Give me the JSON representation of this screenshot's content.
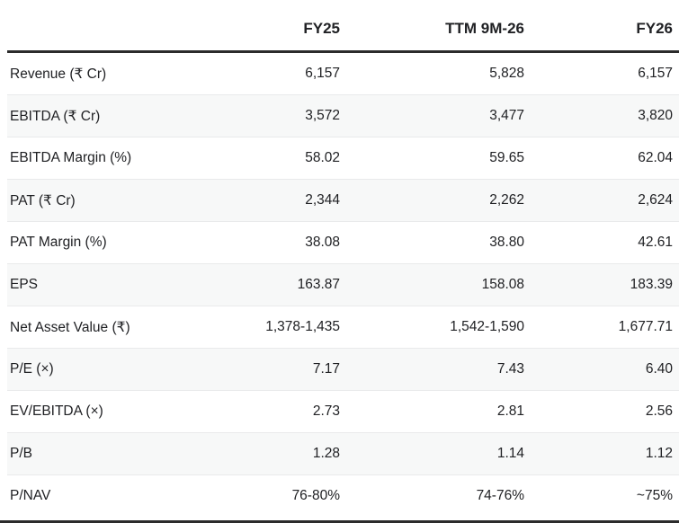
{
  "chart_data": {
    "type": "table",
    "columns": [
      "",
      "FY25",
      "TTM 9M-26",
      "FY26"
    ],
    "rows": [
      [
        "Revenue (₹ Cr)",
        "6,157",
        "5,828",
        "6,157"
      ],
      [
        "EBITDA (₹ Cr)",
        "3,572",
        "3,477",
        "3,820"
      ],
      [
        "EBITDA Margin (%)",
        "58.02",
        "59.65",
        "62.04"
      ],
      [
        "PAT (₹ Cr)",
        "2,344",
        "2,262",
        "2,624"
      ],
      [
        "PAT Margin (%)",
        "38.08",
        "38.80",
        "42.61"
      ],
      [
        "EPS",
        "163.87",
        "158.08",
        "183.39"
      ],
      [
        "Net Asset Value (₹)",
        "1,378-1,435",
        "1,542-1,590",
        "1,677.71"
      ],
      [
        "P/E (×)",
        "7.17",
        "7.43",
        "6.40"
      ],
      [
        "EV/EBITDA (×)",
        "2.73",
        "2.81",
        "2.56"
      ],
      [
        "P/B",
        "1.28",
        "1.14",
        "1.12"
      ],
      [
        "P/NAV",
        "76-80%",
        "74-76%",
        "~75%"
      ]
    ],
    "layout": {
      "value_alignment": "right",
      "alt_row_shading": true,
      "header_rule": true,
      "bottom_rule": true
    }
  },
  "colors": {
    "text": "#202124",
    "header_rule": "#2b2b2b",
    "bottom_rule": "#2b2b2b",
    "row_divider": "#e9eaeb",
    "row_alt_bg": "#f7f8f8",
    "background": "#ffffff"
  }
}
